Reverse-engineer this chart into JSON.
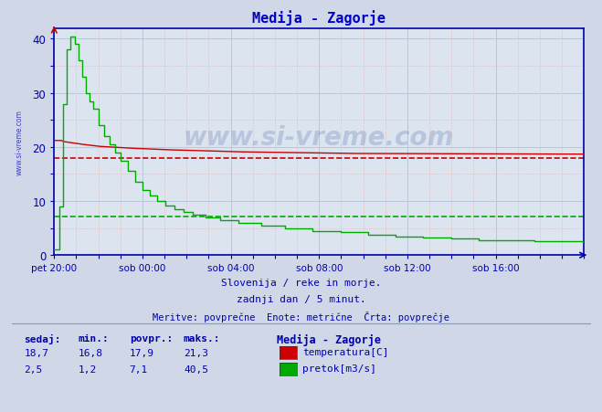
{
  "title": "Medija - Zagorje",
  "title_color": "#0000cc",
  "bg_color": "#d0d8e8",
  "plot_bg_color": "#dce4f0",
  "axis_color": "#0000aa",
  "xlabel_ticks": [
    "pet 20:00",
    "sob 00:00",
    "sob 04:00",
    "sob 08:00",
    "sob 12:00",
    "sob 16:00"
  ],
  "yticks": [
    0,
    10,
    20,
    30,
    40
  ],
  "ylim": [
    0,
    42
  ],
  "xlim": [
    0,
    288
  ],
  "temp_color": "#cc0000",
  "flow_color": "#00aa00",
  "temp_avg": 17.9,
  "flow_avg": 7.1,
  "temp_min": 16.8,
  "temp_max": 21.3,
  "flow_min": 1.2,
  "flow_max": 40.5,
  "temp_current": 18.7,
  "flow_current": 2.5,
  "subtitle1": "Slovenija / reke in morje.",
  "subtitle2": "zadnji dan / 5 minut.",
  "subtitle3": "Meritve: povprečne  Enote: metrične  Črta: povprečje",
  "watermark": "www.si-vreme.com",
  "label_temp": "temperatura[C]",
  "label_flow": "pretok[m3/s]",
  "legend_title": "Medija - Zagorje",
  "tick_positions": [
    0,
    48,
    96,
    144,
    192,
    240
  ]
}
